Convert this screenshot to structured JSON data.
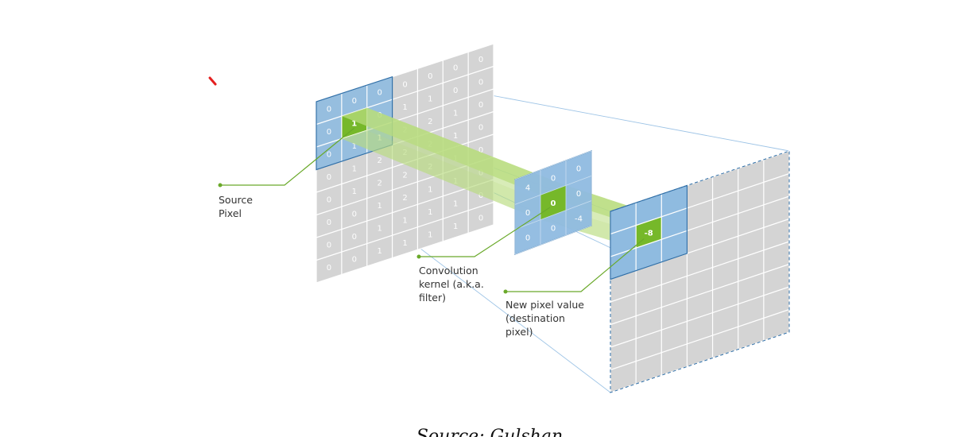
{
  "colors": {
    "grid_fill": "#d4d4d4",
    "grid_line": "#ffffff",
    "kernel_blue": "#8fbbe0",
    "kernel_border": "#2f6fa8",
    "highlight_green": "#76b82a",
    "beam_green": "#b8dc7e",
    "guide_line": "#9ec4e6",
    "leader_line": "#6aa92a",
    "red_mark": "#e41f1f"
  },
  "source_grid": {
    "rows": [
      [
        "0",
        "0",
        "0",
        "0",
        "0",
        "0",
        "0"
      ],
      [
        "0",
        "0",
        "0",
        "1",
        "1",
        "0",
        "0"
      ],
      [
        "0",
        "1",
        "1",
        "2",
        "2",
        "1",
        "0"
      ],
      [
        "0",
        "1",
        "2",
        "2",
        "2",
        "1",
        "0"
      ],
      [
        "0",
        "1",
        "2",
        "2",
        "2",
        "1",
        "0"
      ],
      [
        "0",
        "0",
        "1",
        "2",
        "1",
        "1",
        "0"
      ],
      [
        "0",
        "0",
        "1",
        "1",
        "1",
        "1",
        "0"
      ],
      [
        "0",
        "0",
        "1",
        "1",
        "1",
        "1",
        "0"
      ]
    ]
  },
  "source_pixel_value": "1",
  "kernel_values": [
    [
      "4",
      "0",
      "0"
    ],
    [
      "0",
      "0",
      "0"
    ],
    [
      "0",
      "0",
      "-4"
    ]
  ],
  "kernel_center_value": "0",
  "destination_value": "-8",
  "labels": {
    "source_pixel": [
      "Source",
      "Pixel"
    ],
    "kernel": [
      "Convolution",
      "kernel (a.k.a.",
      "filter)"
    ],
    "new_pixel": [
      "New pixel value",
      "(destination",
      "pixel)"
    ]
  },
  "caption": "Source: Gulshan"
}
